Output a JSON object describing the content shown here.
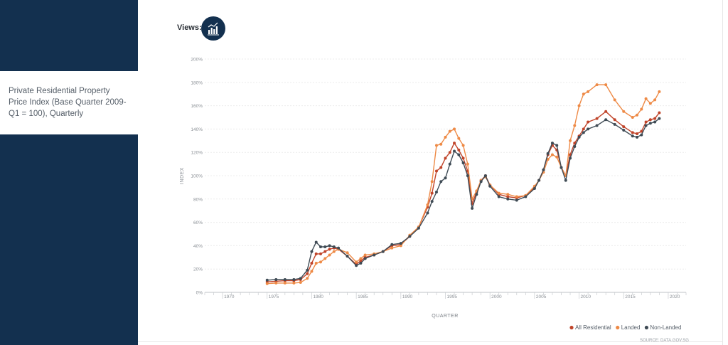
{
  "sidebar": {
    "title": "Private Residential Property Price Index (Base Quarter 2009-Q1 = 100), Quarterly"
  },
  "views": {
    "label": "Views:",
    "icon": "bar-chart-icon"
  },
  "source": "SOURCE: DATA.GOV.SG",
  "colors": {
    "sidebar": "#13304f",
    "all_residential": "#c0442a",
    "landed": "#ee8a46",
    "non_landed": "#3f4b55"
  },
  "chart_data": {
    "type": "line",
    "title": "",
    "xlabel": "QUARTER",
    "ylabel": "INDEX",
    "xlim": [
      1968,
      2022
    ],
    "ylim": [
      0,
      200
    ],
    "x_ticks": [
      "1970",
      "1975",
      "1980",
      "1985",
      "1990",
      "1995",
      "2000",
      "2005",
      "2010",
      "2015",
      "2020"
    ],
    "y_ticks": [
      "0%",
      "20%",
      "40%",
      "60%",
      "80%",
      "100%",
      "120%",
      "140%",
      "160%",
      "180%",
      "200%"
    ],
    "grid": true,
    "legend_position": "bottom-right",
    "series": [
      {
        "name": "All Residential",
        "color": "#c0442a",
        "x": [
          1975,
          1976,
          1977,
          1978,
          1978.75,
          1979.5,
          1980,
          1980.5,
          1981,
          1981.5,
          1982,
          1982.5,
          1983,
          1984,
          1985,
          1985.5,
          1986,
          1987,
          1988,
          1989,
          1990,
          1991,
          1992,
          1993,
          1993.5,
          1994,
          1994.5,
          1995,
          1995.5,
          1996,
          1996.5,
          1997,
          1997.5,
          1998,
          1998.5,
          1999,
          1999.5,
          2000,
          2001,
          2002,
          2003,
          2004,
          2005,
          2005.5,
          2006,
          2006.5,
          2007,
          2007.5,
          2008,
          2008.5,
          2009,
          2009.5,
          2010,
          2010.5,
          2011,
          2012,
          2013,
          2014,
          2015,
          2016,
          2016.5,
          2017,
          2017.5,
          2018,
          2018.5,
          2019
        ],
        "y": [
          9,
          9.5,
          10,
          10,
          11,
          16,
          25,
          33,
          33,
          35,
          37,
          38,
          37,
          31,
          24,
          27,
          30,
          32,
          35,
          40,
          41,
          48,
          56,
          73,
          85,
          104,
          107,
          115,
          120,
          128,
          122,
          115,
          104,
          76,
          86,
          96,
          100,
          92,
          84,
          82,
          81,
          83,
          90,
          96,
          105,
          118,
          126,
          122,
          107,
          100,
          118,
          128,
          134,
          140,
          146,
          149,
          155,
          148,
          142,
          137,
          136,
          138,
          146,
          148,
          149,
          154
        ]
      },
      {
        "name": "Landed",
        "color": "#ee8a46",
        "x": [
          1975,
          1976,
          1977,
          1978,
          1978.75,
          1979.5,
          1980,
          1980.5,
          1981,
          1981.5,
          1982,
          1982.5,
          1983,
          1984,
          1985,
          1985.5,
          1986,
          1987,
          1988,
          1989,
          1990,
          1991,
          1992,
          1993,
          1993.5,
          1994,
          1994.5,
          1995,
          1995.5,
          1996,
          1996.5,
          1997,
          1997.5,
          1998,
          1998.5,
          1999,
          1999.5,
          2000,
          2001,
          2002,
          2003,
          2004,
          2005,
          2005.5,
          2006,
          2006.5,
          2007,
          2007.5,
          2008,
          2008.5,
          2009,
          2009.5,
          2010,
          2010.5,
          2011,
          2012,
          2013,
          2014,
          2015,
          2016,
          2016.5,
          2017,
          2017.5,
          2018,
          2018.5,
          2019
        ],
        "y": [
          7.5,
          8,
          8,
          8,
          8.5,
          12,
          18,
          25,
          26,
          29,
          32,
          35,
          37,
          34,
          26,
          29,
          32,
          33,
          35,
          38,
          40,
          49,
          56,
          75,
          95,
          126,
          127,
          133,
          138,
          140,
          132,
          126,
          110,
          80,
          87,
          96,
          99,
          92,
          85,
          84,
          82,
          83,
          91,
          96,
          103,
          114,
          118,
          116,
          107,
          100,
          130,
          143,
          160,
          170,
          172,
          178,
          178,
          165,
          155,
          150,
          152,
          157,
          166,
          162,
          165,
          172
        ]
      },
      {
        "name": "Non-Landed",
        "color": "#3f4b55",
        "x": [
          1975,
          1976,
          1977,
          1978,
          1978.75,
          1979.5,
          1980,
          1980.5,
          1981,
          1981.5,
          1982,
          1982.5,
          1983,
          1984,
          1985,
          1985.5,
          1986,
          1987,
          1988,
          1989,
          1990,
          1991,
          1992,
          1993,
          1993.5,
          1994,
          1994.5,
          1995,
          1995.5,
          1996,
          1996.5,
          1997,
          1997.5,
          1998,
          1998.5,
          1999,
          1999.5,
          2000,
          2001,
          2002,
          2003,
          2004,
          2005,
          2005.5,
          2006,
          2006.5,
          2007,
          2007.5,
          2008,
          2008.5,
          2009,
          2009.5,
          2010,
          2010.5,
          2011,
          2012,
          2013,
          2014,
          2015,
          2016,
          2016.5,
          2017,
          2017.5,
          2018,
          2018.5,
          2019
        ],
        "y": [
          10.5,
          11,
          11,
          11,
          12,
          19,
          35,
          43,
          39,
          39,
          40,
          39,
          38,
          31,
          23,
          25,
          29,
          32,
          35,
          41,
          42,
          48,
          55,
          68,
          78,
          86,
          95,
          98,
          110,
          121,
          118,
          111,
          100,
          72,
          84,
          95,
          100,
          91,
          82,
          80,
          79,
          82,
          89,
          96,
          105,
          119,
          128,
          126,
          107,
          96,
          115,
          125,
          133,
          137,
          140,
          143,
          148,
          144,
          139,
          134,
          133,
          135,
          143,
          145,
          146,
          149
        ]
      }
    ]
  }
}
